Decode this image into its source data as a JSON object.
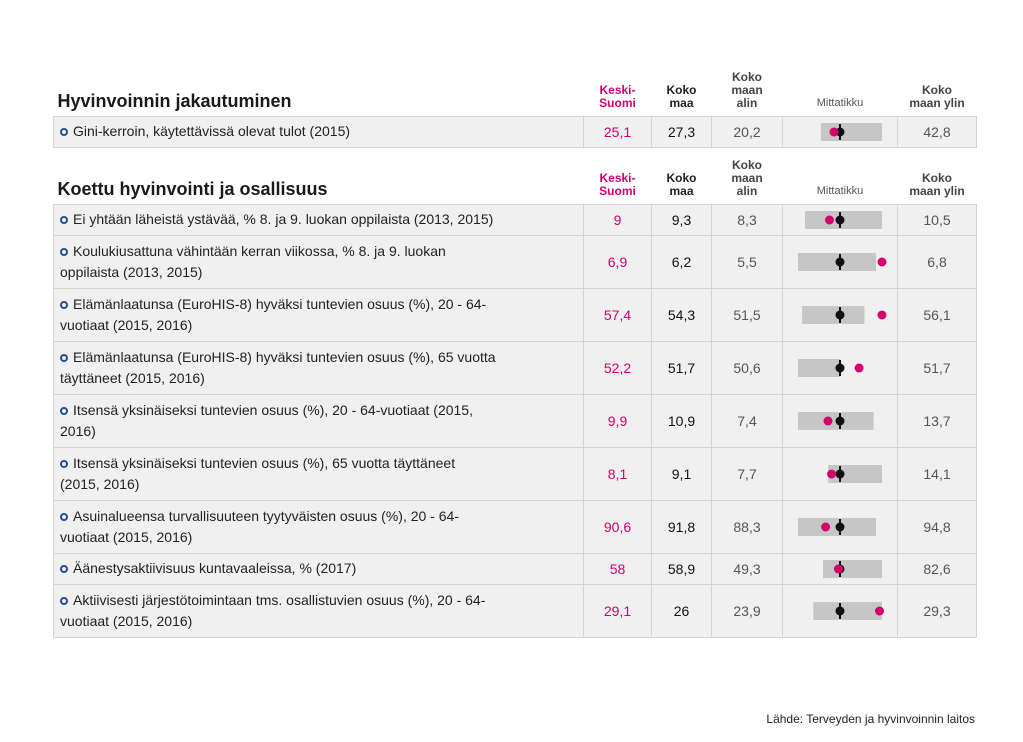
{
  "sections": [
    {
      "title": "Hyvinvoinnin jakautuminen",
      "headers": {
        "ks": [
          "Keski-",
          "Suomi"
        ],
        "km": [
          "Koko",
          "maa"
        ],
        "alin": [
          "Koko",
          "maan",
          "alin"
        ],
        "mitta": "Mittatikku",
        "ylin": [
          "Koko",
          "maan ylin"
        ]
      },
      "rows": [
        {
          "lines": [
            "Gini-kerroin, käytettävissä olevat tulot (2015)"
          ],
          "ks": "25,1",
          "km": "27,3",
          "alin": "20,2",
          "ylin": "42,8",
          "ks_val": 25.1,
          "km_val": 27.3,
          "alin_val": 20.2,
          "ylin_val": 42.8
        }
      ]
    },
    {
      "title": "Koettu hyvinvointi ja osallisuus",
      "headers": {
        "ks": [
          "Keski-",
          "Suomi"
        ],
        "km": [
          "Koko",
          "maa"
        ],
        "alin": [
          "Koko",
          "maan",
          "alin"
        ],
        "mitta": "Mittatikku",
        "ylin": [
          "Koko",
          "maan ylin"
        ]
      },
      "rows": [
        {
          "lines": [
            "Ei yhtään läheistä ystävää, % 8. ja 9. luokan oppilaista (2013, 2015)"
          ],
          "ks": "9",
          "km": "9,3",
          "alin": "8,3",
          "ylin": "10,5",
          "ks_val": 9,
          "km_val": 9.3,
          "alin_val": 8.3,
          "ylin_val": 10.5
        },
        {
          "lines": [
            "Koulukiusattuna vähintään kerran viikossa, % 8. ja 9. luokan",
            "oppilaista (2013, 2015)"
          ],
          "ks": "6,9",
          "km": "6,2",
          "alin": "5,5",
          "ylin": "6,8",
          "ks_val": 6.9,
          "km_val": 6.2,
          "alin_val": 5.5,
          "ylin_val": 6.8
        },
        {
          "lines": [
            "Elämänlaatunsa (EuroHIS-8) hyväksi tuntevien osuus (%), 20 - 64-",
            "vuotiaat (2015, 2016)"
          ],
          "ks": "57,4",
          "km": "54,3",
          "alin": "51,5",
          "ylin": "56,1",
          "ks_val": 57.4,
          "km_val": 54.3,
          "alin_val": 51.5,
          "ylin_val": 56.1
        },
        {
          "lines": [
            "Elämänlaatunsa (EuroHIS-8) hyväksi tuntevien osuus (%), 65 vuotta",
            "täyttäneet (2015, 2016)"
          ],
          "ks": "52,2",
          "km": "51,7",
          "alin": "50,6",
          "ylin": "51,7",
          "ks_val": 52.2,
          "km_val": 51.7,
          "alin_val": 50.6,
          "ylin_val": 51.7
        },
        {
          "lines": [
            "Itsensä yksinäiseksi tuntevien osuus (%), 20 - 64-vuotiaat (2015,",
            "2016)"
          ],
          "ks": "9,9",
          "km": "10,9",
          "alin": "7,4",
          "ylin": "13,7",
          "ks_val": 9.9,
          "km_val": 10.9,
          "alin_val": 7.4,
          "ylin_val": 13.7
        },
        {
          "lines": [
            "Itsensä yksinäiseksi tuntevien osuus (%), 65 vuotta täyttäneet",
            "(2015, 2016)"
          ],
          "ks": "8,1",
          "km": "9,1",
          "alin": "7,7",
          "ylin": "14,1",
          "ks_val": 8.1,
          "km_val": 9.1,
          "alin_val": 7.7,
          "ylin_val": 14.1
        },
        {
          "lines": [
            "Asuinalueensa turvallisuuteen tyytyväisten osuus (%), 20 - 64-",
            "vuotiaat (2015, 2016)"
          ],
          "ks": "90,6",
          "km": "91,8",
          "alin": "88,3",
          "ylin": "94,8",
          "ks_val": 90.6,
          "km_val": 91.8,
          "alin_val": 88.3,
          "ylin_val": 94.8
        },
        {
          "lines": [
            "Äänestysaktiivisuus kuntavaaleissa, % (2017)"
          ],
          "ks": "58",
          "km": "58,9",
          "alin": "49,3",
          "ylin": "82,6",
          "ks_val": 58,
          "km_val": 58.9,
          "alin_val": 49.3,
          "ylin_val": 82.6
        },
        {
          "lines": [
            "Aktiivisesti järjestötoimintaan tms. osallistuvien osuus (%), 20 - 64-",
            "vuotiaat (2015, 2016)"
          ],
          "ks": "29,1",
          "km": "26",
          "alin": "23,9",
          "ylin": "29,3",
          "ks_val": 29.1,
          "km_val": 26,
          "alin_val": 23.9,
          "ylin_val": 29.3
        }
      ]
    }
  ],
  "source": "Lähde: Terveyden ja hyvinvoinnin laitos",
  "colors": {
    "region": "#d4006e",
    "country": "#111111",
    "bullet": "#2a4e8c",
    "bar": "#c6c6c6",
    "bar_dark": "#8a8a8a",
    "row_bg": "#f0f0f0"
  }
}
